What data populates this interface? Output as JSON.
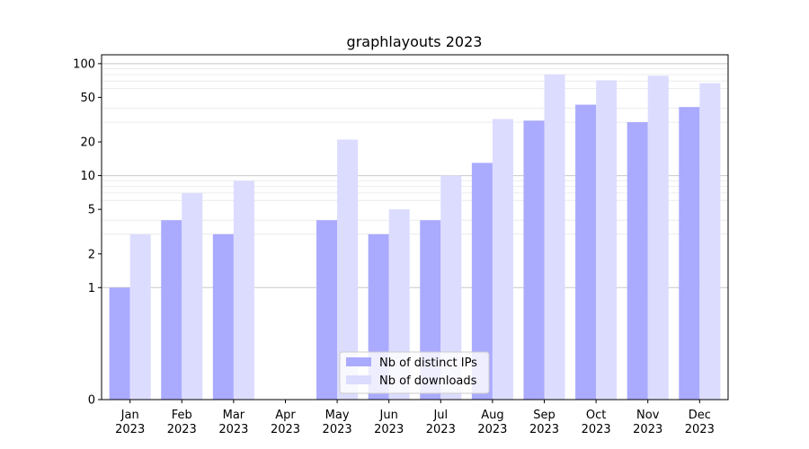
{
  "chart_data": {
    "type": "bar",
    "title": "graphlayouts 2023",
    "xlabel": "",
    "ylabel": "",
    "yscale": "symlog",
    "ylim": [
      0,
      120
    ],
    "yticks": [
      0,
      1,
      2,
      5,
      10,
      20,
      50,
      100
    ],
    "ytick_labels": [
      "0",
      "1",
      "2",
      "5",
      "10",
      "20",
      "50",
      "100"
    ],
    "categories": [
      "Jan\n2023",
      "Feb\n2023",
      "Mar\n2023",
      "Apr\n2023",
      "May\n2023",
      "Jun\n2023",
      "Jul\n2023",
      "Aug\n2023",
      "Sep\n2023",
      "Oct\n2023",
      "Nov\n2023",
      "Dec\n2023"
    ],
    "category_lines": [
      [
        "Jan",
        "2023"
      ],
      [
        "Feb",
        "2023"
      ],
      [
        "Mar",
        "2023"
      ],
      [
        "Apr",
        "2023"
      ],
      [
        "May",
        "2023"
      ],
      [
        "Jun",
        "2023"
      ],
      [
        "Jul",
        "2023"
      ],
      [
        "Aug",
        "2023"
      ],
      [
        "Sep",
        "2023"
      ],
      [
        "Oct",
        "2023"
      ],
      [
        "Nov",
        "2023"
      ],
      [
        "Dec",
        "2023"
      ]
    ],
    "series": [
      {
        "name": "Nb of distinct IPs",
        "color": "#aaaaff",
        "values": [
          1,
          4,
          3,
          0,
          4,
          3,
          4,
          13,
          31,
          43,
          30,
          41
        ]
      },
      {
        "name": "Nb of downloads",
        "color": "#dcdcff",
        "values": [
          3,
          7,
          9,
          0,
          21,
          5,
          10,
          32,
          80,
          71,
          78,
          67
        ]
      }
    ],
    "legend": "lower-center",
    "grid": true,
    "colors": {
      "major_grid": "#c8c8c8",
      "minor_grid": "#ececec",
      "axis": "#000000"
    }
  }
}
